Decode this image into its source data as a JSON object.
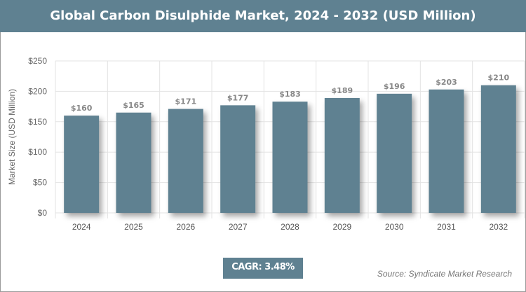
{
  "chart_data": {
    "type": "bar",
    "title": "Global Carbon Disulphide Market, 2024 - 2032 (USD Million)",
    "categories": [
      "2024",
      "2025",
      "2026",
      "2027",
      "2028",
      "2029",
      "2030",
      "2031",
      "2032"
    ],
    "values": [
      160,
      165,
      171,
      177,
      183,
      189,
      196,
      203,
      210
    ],
    "data_labels": [
      "$160",
      "$165",
      "$171",
      "$177",
      "$183",
      "$189",
      "$196",
      "$203",
      "$210"
    ],
    "ylabel": "Market Size (USD Million)",
    "xlabel": "",
    "ylim": [
      0,
      250
    ],
    "yticks": [
      0,
      50,
      100,
      150,
      200,
      250
    ],
    "ytick_labels": [
      "$0",
      "$50",
      "$100",
      "$150",
      "$200",
      "$250"
    ],
    "grid": true,
    "bar_color": "#5f8191"
  },
  "cagr": "CAGR: 3.48%",
  "source": "Source: Syndicate Market Research"
}
